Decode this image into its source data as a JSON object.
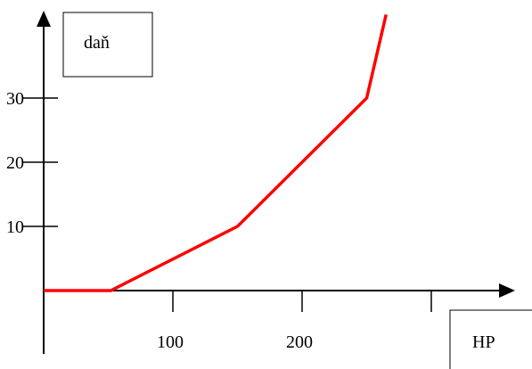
{
  "chart_data": {
    "type": "line",
    "xlabel": "HP",
    "ylabel": "daň",
    "x_ticks": [
      100,
      200
    ],
    "x_tick_labels": [
      "100",
      "200"
    ],
    "x_tick_marks": [
      100,
      200,
      300
    ],
    "y_ticks": [
      10,
      20,
      30
    ],
    "y_tick_labels": [
      "10",
      "20",
      "30"
    ],
    "xlim": [
      0,
      370
    ],
    "ylim": [
      0,
      45
    ],
    "grid": false,
    "series": [
      {
        "x": [
          0,
          52,
          150,
          250,
          265
        ],
        "y": [
          0,
          0,
          10,
          30,
          43
        ],
        "color": "#ff0000"
      }
    ]
  }
}
